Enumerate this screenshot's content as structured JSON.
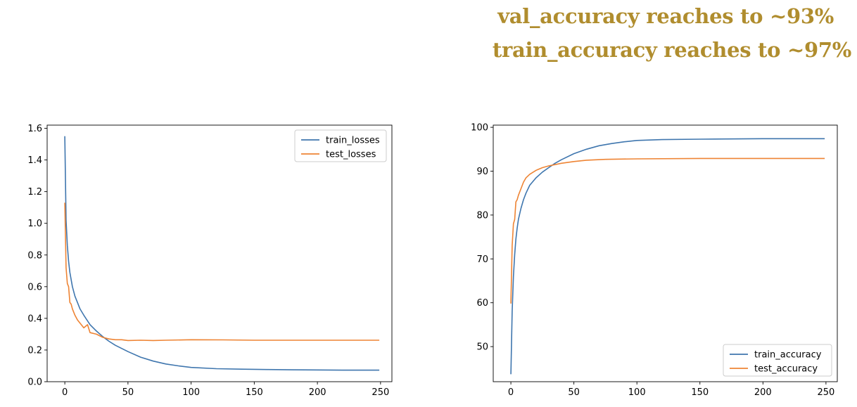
{
  "headline": {
    "lines": [
      "val_accuracy reaches to ~93%",
      "train_accuracy reaches to ~97%"
    ],
    "color": "#b08d2e"
  },
  "chart_data": [
    {
      "type": "line",
      "title": "",
      "xlabel": "",
      "ylabel": "",
      "xlim": [
        -14,
        259
      ],
      "ylim": [
        0,
        1.62
      ],
      "xticks": [
        0,
        50,
        100,
        150,
        200,
        250
      ],
      "yticks": [
        0.0,
        0.2,
        0.4,
        0.6,
        0.8,
        1.0,
        1.2,
        1.4,
        1.6
      ],
      "ytick_decimals": 1,
      "legend": "top-right",
      "grid": false,
      "series": [
        {
          "name": "train_losses",
          "color": "#3f76ae",
          "x": [
            0,
            1,
            2,
            3,
            4,
            6,
            8,
            10,
            12,
            15,
            20,
            25,
            30,
            35,
            40,
            45,
            50,
            60,
            70,
            80,
            90,
            100,
            120,
            140,
            160,
            180,
            200,
            220,
            240,
            249
          ],
          "y": [
            1.55,
            1.02,
            0.86,
            0.76,
            0.69,
            0.6,
            0.54,
            0.5,
            0.46,
            0.42,
            0.36,
            0.32,
            0.285,
            0.255,
            0.23,
            0.21,
            0.19,
            0.155,
            0.13,
            0.112,
            0.1,
            0.09,
            0.082,
            0.079,
            0.077,
            0.075,
            0.074,
            0.073,
            0.073,
            0.073
          ]
        },
        {
          "name": "test_losses",
          "color": "#ee8434",
          "x": [
            0,
            1,
            2,
            3,
            4,
            5,
            6,
            8,
            10,
            12,
            15,
            18,
            20,
            25,
            30,
            35,
            40,
            45,
            50,
            60,
            70,
            80,
            100,
            125,
            150,
            175,
            200,
            225,
            249
          ],
          "y": [
            1.13,
            0.72,
            0.62,
            0.6,
            0.5,
            0.49,
            0.46,
            0.42,
            0.39,
            0.37,
            0.34,
            0.36,
            0.31,
            0.3,
            0.28,
            0.27,
            0.265,
            0.265,
            0.26,
            0.262,
            0.26,
            0.262,
            0.265,
            0.264,
            0.262,
            0.262,
            0.262,
            0.262,
            0.262
          ]
        }
      ]
    },
    {
      "type": "line",
      "title": "",
      "xlabel": "",
      "ylabel": "",
      "xlim": [
        -14,
        259
      ],
      "ylim": [
        42,
        100.5
      ],
      "xticks": [
        0,
        50,
        100,
        150,
        200,
        250
      ],
      "yticks": [
        50,
        60,
        70,
        80,
        90,
        100
      ],
      "ytick_decimals": 0,
      "legend": "bottom-right",
      "grid": false,
      "series": [
        {
          "name": "train_accuracy",
          "color": "#3f76ae",
          "x": [
            0,
            1,
            2,
            3,
            4,
            5,
            6,
            8,
            10,
            12,
            15,
            20,
            25,
            30,
            35,
            40,
            50,
            60,
            70,
            80,
            90,
            100,
            120,
            150,
            200,
            249
          ],
          "y": [
            43.7,
            58,
            66,
            71,
            74.5,
            77,
            79,
            81.5,
            83.5,
            85,
            86.8,
            88.5,
            89.8,
            90.8,
            91.8,
            92.6,
            94,
            95,
            95.8,
            96.3,
            96.7,
            97,
            97.2,
            97.3,
            97.4,
            97.4
          ]
        },
        {
          "name": "test_accuracy",
          "color": "#ee8434",
          "x": [
            0,
            1,
            2,
            3,
            4,
            5,
            6,
            8,
            10,
            12,
            15,
            20,
            25,
            30,
            35,
            40,
            50,
            60,
            75,
            100,
            150,
            200,
            249
          ],
          "y": [
            59.8,
            73,
            78,
            79,
            83,
            83.5,
            84.5,
            86,
            87.5,
            88.5,
            89.3,
            90.2,
            90.8,
            91.2,
            91.5,
            91.8,
            92.2,
            92.5,
            92.7,
            92.8,
            92.9,
            92.9,
            92.9
          ]
        }
      ]
    }
  ]
}
